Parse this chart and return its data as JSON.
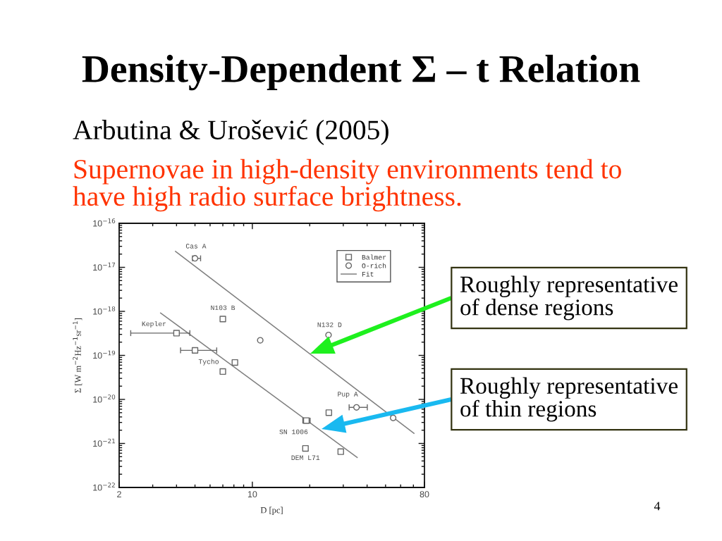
{
  "chart_data": {
    "type": "scatter",
    "title": "Density-Dependent Σ – t Relation",
    "subtitle": "Arbutina & Urošević (2005)",
    "xlabel": "D [pc]",
    "ylabel": "Σ [W m$^{−2}$Hz$^{−1}$sr$^{−1}$]",
    "log": "xy",
    "xlim": [
      2,
      80
    ],
    "ylim": [
      1e-22,
      1e-16
    ],
    "xticks": [
      2,
      10,
      80
    ],
    "yticks": [
      {
        "value": 1e-22,
        "label": "10$^{−22}$"
      },
      {
        "value": 1e-21,
        "label": "10$^{−21}$"
      },
      {
        "value": 1e-20,
        "label": "10$^{−20}$"
      },
      {
        "value": 1e-19,
        "label": "10$^{−19}$"
      },
      {
        "value": 1e-18,
        "label": "10$^{−18}$"
      },
      {
        "value": 1e-17,
        "label": "10$^{−17}$"
      },
      {
        "value": 1e-16,
        "label": "10$^{−16}$"
      }
    ],
    "grid": false,
    "legend": "top right",
    "series": [
      {
        "name": "Balmer",
        "marker": "square",
        "color": "#666666",
        "x": [
          4.0,
          5.0,
          7.0,
          7.0,
          8.1,
          19.0,
          19.2,
          25.2,
          29.1
        ],
        "values": [
          3.2e-19,
          1.3e-19,
          6.7e-19,
          4.3e-20,
          6.9e-20,
          7.7e-22,
          3.3e-21,
          5e-21,
          6.5e-22
        ],
        "xerrors": [
          [
            2.3,
            4.7
          ],
          [
            4.2,
            6.5
          ],
          null,
          null,
          null,
          null,
          [
            18.4,
            20.1
          ],
          null,
          null
        ]
      },
      {
        "name": "O-rich",
        "marker": "circle",
        "color": "#666666",
        "x": [
          5.0,
          11.0,
          25.1,
          35.2,
          54.8
        ],
        "values": [
          1.6e-17,
          2.2e-19,
          2.9e-19,
          6.6e-21,
          3.8e-21
        ],
        "xerrors": [
          [
            4.85,
            5.35
          ],
          null,
          null,
          [
            32.2,
            40.1
          ],
          null
        ]
      },
      {
        "name": "Fit",
        "type": "line",
        "color": "#808080",
        "line_style": "solid",
        "x": [
          3.95,
          70.5
        ],
        "values": [
          2.3e-17,
          1.7e-21
        ]
      },
      {
        "type": "line",
        "color": "#808080",
        "line_style": "solid",
        "x": [
          3.3,
          35.5
        ],
        "values": [
          9.2e-19,
          4.8e-22
        ]
      }
    ],
    "annotations": [
      "Supernovae in high-density environments tend to\nhave high radio surface brightness.",
      "4",
      {
        "text": "Cas A",
        "x": 5.0,
        "y": 1.6e-17
      },
      {
        "text": "N103 B",
        "x": 7.0,
        "y": 6.7e-19
      },
      {
        "text": "Kepler",
        "x": 4.0,
        "y": 3.2e-19
      },
      {
        "text": "Tycho",
        "x": 5.0,
        "y": 1.3e-19
      },
      {
        "text": "N132 D",
        "x": 25.1,
        "y": 2.9e-19
      },
      {
        "text": "Pup A",
        "x": 35.2,
        "y": 6.6e-21
      },
      {
        "text": "SN 1006",
        "x": 19.2,
        "y": 3.3e-21
      },
      {
        "text": "DEM L71",
        "x": 19.0,
        "y": 7.7e-22
      },
      "Roughly representative\nof dense regions",
      "Roughly representative\nof thin regions"
    ]
  }
}
